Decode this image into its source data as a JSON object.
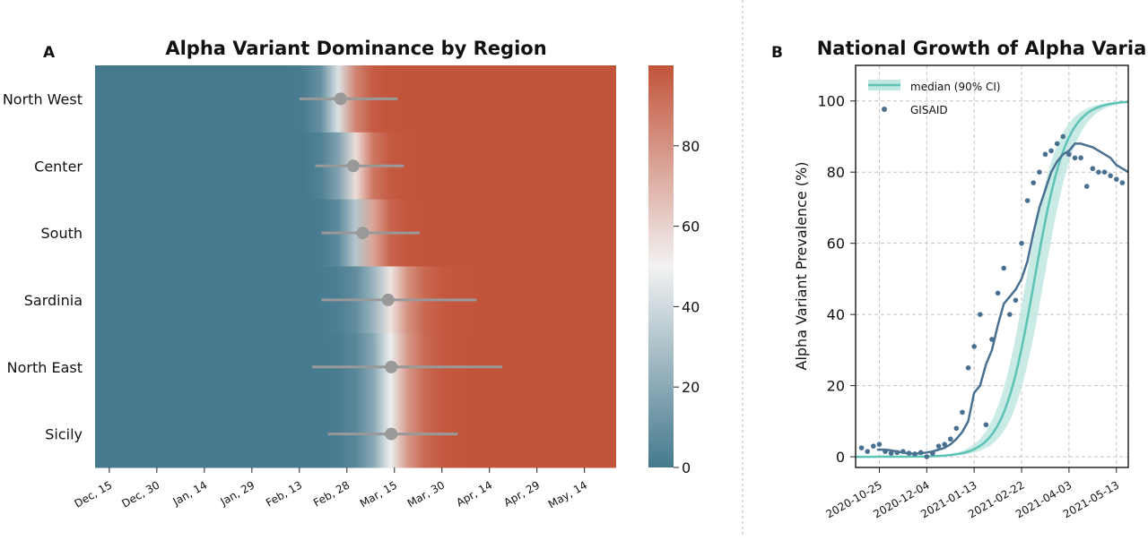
{
  "panel_a_letter": "A",
  "panel_b_letter": "B",
  "chart_data": [
    {
      "type": "heatmap",
      "title": "Alpha Variant Dominance by Region",
      "xlabel": "",
      "ylabel": "",
      "x_tick_labels": [
        "Dec, 15",
        "Dec, 30",
        "Jan, 14",
        "Jan, 29",
        "Feb, 13",
        "Feb, 28",
        "Mar, 15",
        "Mar, 30",
        "Apr, 14",
        "Apr, 29",
        "May, 14"
      ],
      "x_tick_days": [
        14,
        29,
        44,
        59,
        74,
        89,
        104,
        119,
        134,
        149,
        164
      ],
      "x_range_days": [
        9.5,
        174
      ],
      "colorbar": {
        "range": [
          0,
          100
        ],
        "ticks": [
          0,
          20,
          40,
          60,
          80
        ],
        "low_color": "#45798e",
        "mid_color": "#f2f2f2",
        "high_color": "#c2543a"
      },
      "marker_color": "#999999",
      "regions": [
        {
          "name": "North West",
          "midpoint": 87,
          "ci": [
            74,
            105
          ],
          "width": 11
        },
        {
          "name": "Center",
          "midpoint": 91,
          "ci": [
            79,
            107
          ],
          "width": 12
        },
        {
          "name": "South",
          "midpoint": 94,
          "ci": [
            81,
            112
          ],
          "width": 12
        },
        {
          "name": "Sardinia",
          "midpoint": 102,
          "ci": [
            81,
            130
          ],
          "width": 17
        },
        {
          "name": "North East",
          "midpoint": 103,
          "ci": [
            78,
            138
          ],
          "width": 16
        },
        {
          "name": "Sicily",
          "midpoint": 103,
          "ci": [
            83,
            124
          ],
          "width": 16
        }
      ]
    },
    {
      "type": "line",
      "title": "National Growth of Alpha Variant",
      "xlabel": "",
      "ylabel": "Alpha Variant Prevalence (%)",
      "x_tick_labels": [
        "2020-10-25",
        "2020-12-04",
        "2021-01-13",
        "2021-02-22",
        "2021-04-03",
        "2021-05-13"
      ],
      "x_tick_days": [
        0,
        40,
        80,
        120,
        160,
        200
      ],
      "xlim_days": [
        -20,
        210
      ],
      "ylim": [
        -3,
        110
      ],
      "y_ticks": [
        0,
        20,
        40,
        60,
        80,
        100
      ],
      "grid": true,
      "legend": {
        "position": "top-left",
        "entries": [
          "median (90% CI)",
          "GISAID"
        ]
      },
      "colors": {
        "median": "#5cc3b6",
        "ci_band": "#bfe6e0",
        "gisaid_line": "#4a7091",
        "gisaid_points": "#4a7091"
      },
      "median_params": {
        "midpoint": 131,
        "rate": 0.075
      },
      "ci_upper_params": {
        "midpoint": 124,
        "rate": 0.075
      },
      "ci_lower_params": {
        "midpoint": 139,
        "rate": 0.075
      },
      "gisaid_line": {
        "x": [
          -2,
          5,
          10,
          15,
          20,
          25,
          30,
          35,
          40,
          45,
          50,
          55,
          60,
          65,
          70,
          75,
          80,
          85,
          90,
          95,
          100,
          105,
          110,
          115,
          120,
          125,
          130,
          135,
          140,
          145,
          150,
          155,
          160,
          165,
          170,
          175,
          180,
          185,
          190,
          195,
          200,
          205,
          210
        ],
        "y": [
          2,
          2,
          1.8,
          1.5,
          1.2,
          0.9,
          0.9,
          1,
          1.2,
          1.5,
          2,
          2.5,
          3.5,
          5,
          7,
          10,
          18,
          20,
          26,
          30,
          37,
          43,
          45,
          47,
          50,
          55,
          63,
          70,
          75,
          80,
          83,
          85,
          86,
          88,
          88,
          87.5,
          87,
          86,
          85,
          84,
          82,
          81,
          80
        ]
      },
      "gisaid_points": {
        "x": [
          -15,
          -10,
          -5,
          0,
          5,
          10,
          15,
          20,
          25,
          30,
          35,
          40,
          45,
          50,
          55,
          60,
          65,
          70,
          75,
          80,
          85,
          90,
          95,
          100,
          105,
          110,
          115,
          120,
          125,
          130,
          135,
          140,
          145,
          150,
          155,
          160,
          165,
          170,
          175,
          180,
          185,
          190,
          195,
          200,
          205
        ],
        "y": [
          2.5,
          1.5,
          3,
          3.5,
          1.5,
          1,
          1.2,
          1.5,
          1,
          0.8,
          1.2,
          0,
          1,
          3,
          3.5,
          5,
          8,
          12.5,
          25,
          31,
          40,
          9,
          33,
          46,
          53,
          40,
          44,
          60,
          72,
          77,
          80,
          85,
          86,
          88,
          90,
          85,
          84,
          84,
          76,
          81,
          80,
          80,
          79,
          78,
          77
        ]
      }
    }
  ]
}
